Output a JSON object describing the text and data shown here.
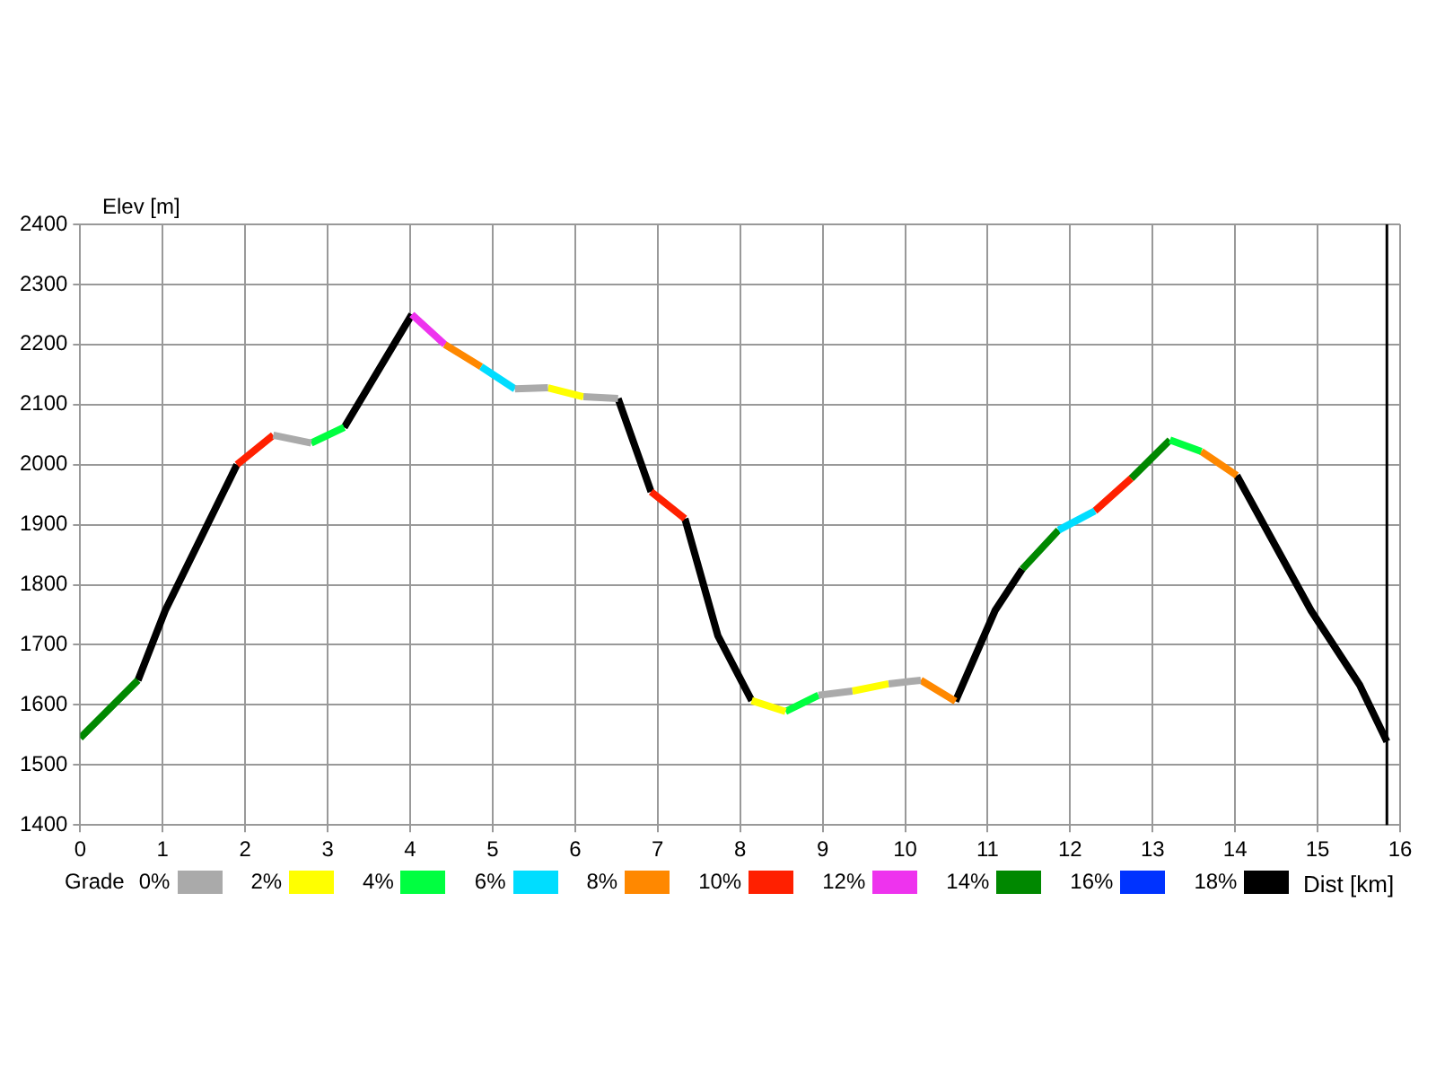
{
  "chart_data": {
    "type": "line",
    "ylabel": "Elev [m]",
    "xlabel": "Dist [km]",
    "legend_title": "Grade",
    "legend": "bottom",
    "xlim": [
      0,
      16
    ],
    "xticks": [
      0,
      1,
      2,
      3,
      4,
      5,
      6,
      7,
      8,
      9,
      10,
      11,
      12,
      13,
      14,
      15,
      16
    ],
    "ylim": [
      1400,
      2400
    ],
    "yticks": [
      1400,
      1500,
      1600,
      1700,
      1800,
      1900,
      2000,
      2100,
      2200,
      2300,
      2400
    ],
    "grid": true,
    "marker": "none",
    "ref_lines": [
      {
        "axis": "x",
        "value": 15.84,
        "color": "#000000"
      }
    ],
    "series": [
      {
        "name": "0%",
        "color": "#aaaaaa",
        "x": [
          2.34,
          2.8,
          null,
          5.27,
          5.67,
          null,
          6.1,
          6.52,
          null,
          8.95,
          9.36,
          null,
          9.8,
          10.19
        ],
        "values": [
          2049,
          2036,
          null,
          2126,
          2128,
          null,
          2113,
          2110,
          null,
          1616,
          1623,
          null,
          1635,
          1641
        ]
      },
      {
        "name": "2%",
        "color": "#ffff00",
        "x": [
          5.67,
          6.1,
          null,
          8.14,
          8.55,
          null,
          9.36,
          9.8
        ],
        "values": [
          2128,
          2113,
          null,
          1607,
          1589,
          null,
          1623,
          1635
        ]
      },
      {
        "name": "4%",
        "color": "#00ff40",
        "x": [
          2.8,
          3.2,
          null,
          8.55,
          8.95,
          null,
          13.21,
          13.59
        ],
        "values": [
          2036,
          2062,
          null,
          1589,
          1616,
          null,
          2041,
          2022
        ]
      },
      {
        "name": "6%",
        "color": "#00ddff",
        "x": [
          4.86,
          5.27,
          null,
          11.86,
          12.3
        ],
        "values": [
          2163,
          2126,
          null,
          1891,
          1923
        ]
      },
      {
        "name": "8%",
        "color": "#ff8800",
        "x": [
          4.42,
          4.86,
          null,
          10.19,
          10.61,
          null,
          13.59,
          14.02
        ],
        "values": [
          2200,
          2163,
          null,
          1641,
          1606,
          null,
          2022,
          1982
        ]
      },
      {
        "name": "10%",
        "color": "#ff2000",
        "x": [
          1.9,
          2.34,
          null,
          6.92,
          7.33,
          null,
          12.3,
          12.74
        ],
        "values": [
          2000,
          2049,
          null,
          1955,
          1910,
          null,
          1923,
          1977
        ]
      },
      {
        "name": "12%",
        "color": "#ee33ee",
        "x": [
          4.02,
          4.42
        ],
        "values": [
          2250,
          2200
        ]
      },
      {
        "name": "14%",
        "color": "#008800",
        "x": [
          0,
          0.7,
          null,
          11.42,
          11.86,
          null,
          12.74,
          13.21
        ],
        "values": [
          1545,
          1641,
          null,
          1826,
          1891,
          null,
          1977,
          2041
        ]
      },
      {
        "name": "16%",
        "color": "#0033ff"
      },
      {
        "name": "18%",
        "color": "#000000",
        "x": [
          0.7,
          1.03,
          1.9,
          null,
          3.2,
          4.02,
          null,
          6.52,
          6.92,
          null,
          7.33,
          7.73,
          8.14,
          null,
          10.61,
          11.09,
          11.42,
          null,
          14.02,
          14.92,
          15.51,
          15.84
        ],
        "values": [
          1641,
          1757,
          2000,
          null,
          2062,
          2250,
          null,
          2110,
          1955,
          null,
          1910,
          1715,
          1607,
          null,
          1606,
          1757,
          1826,
          null,
          1982,
          1757,
          1633,
          1539
        ]
      }
    ]
  }
}
